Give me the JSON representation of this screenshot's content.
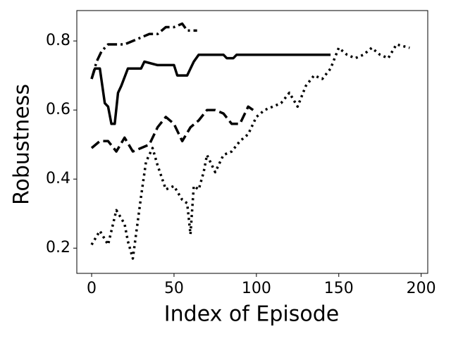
{
  "chart_data": {
    "type": "line",
    "xlabel": "Index of Episode",
    "ylabel": "Robustness",
    "xlim": [
      -9,
      204
    ],
    "ylim": [
      0.127,
      0.888
    ],
    "xticks": [
      0,
      50,
      100,
      150,
      200
    ],
    "yticks": [
      0.2,
      0.4,
      0.6,
      0.8
    ],
    "series": [
      {
        "color": "#000000",
        "dash": "dashdot",
        "x": [
          0,
          3,
          6,
          10,
          15,
          20,
          25,
          30,
          35,
          40,
          45,
          50,
          55,
          58,
          62,
          64
        ],
        "values": [
          0.69,
          0.74,
          0.77,
          0.79,
          0.79,
          0.79,
          0.8,
          0.81,
          0.82,
          0.82,
          0.84,
          0.84,
          0.85,
          0.83,
          0.83,
          0.83
        ]
      },
      {
        "color": "#000000",
        "dash": "solid",
        "x": [
          0,
          2,
          5,
          8,
          10,
          12,
          14,
          16,
          18,
          22,
          30,
          32,
          40,
          50,
          52,
          58,
          62,
          65,
          80,
          82,
          86,
          88,
          145
        ],
        "values": [
          0.69,
          0.72,
          0.72,
          0.62,
          0.61,
          0.56,
          0.56,
          0.65,
          0.67,
          0.72,
          0.72,
          0.74,
          0.73,
          0.73,
          0.7,
          0.7,
          0.74,
          0.76,
          0.76,
          0.75,
          0.75,
          0.76,
          0.76
        ]
      },
      {
        "color": "#000000",
        "dash": "dashed",
        "x": [
          0,
          5,
          10,
          15,
          20,
          25,
          30,
          35,
          40,
          45,
          50,
          55,
          60,
          65,
          70,
          75,
          80,
          85,
          90,
          95,
          98
        ],
        "values": [
          0.49,
          0.51,
          0.51,
          0.48,
          0.52,
          0.48,
          0.49,
          0.5,
          0.55,
          0.58,
          0.56,
          0.51,
          0.55,
          0.57,
          0.6,
          0.6,
          0.59,
          0.56,
          0.56,
          0.61,
          0.6
        ]
      },
      {
        "color": "#000000",
        "dash": "dotted",
        "x": [
          0,
          5,
          10,
          15,
          20,
          22,
          25,
          30,
          33,
          37,
          40,
          45,
          50,
          55,
          58,
          60,
          62,
          65,
          68,
          70,
          75,
          80,
          85,
          90,
          95,
          100,
          105,
          110,
          115,
          120,
          125,
          130,
          135,
          140,
          145,
          150,
          155,
          160,
          165,
          170,
          175,
          180,
          185,
          193
        ],
        "values": [
          0.21,
          0.25,
          0.21,
          0.31,
          0.27,
          0.22,
          0.17,
          0.35,
          0.45,
          0.49,
          0.44,
          0.37,
          0.38,
          0.34,
          0.33,
          0.24,
          0.38,
          0.37,
          0.42,
          0.47,
          0.42,
          0.47,
          0.48,
          0.51,
          0.53,
          0.58,
          0.6,
          0.61,
          0.62,
          0.65,
          0.61,
          0.67,
          0.7,
          0.69,
          0.72,
          0.78,
          0.76,
          0.75,
          0.76,
          0.78,
          0.76,
          0.75,
          0.79,
          0.78
        ]
      }
    ]
  }
}
